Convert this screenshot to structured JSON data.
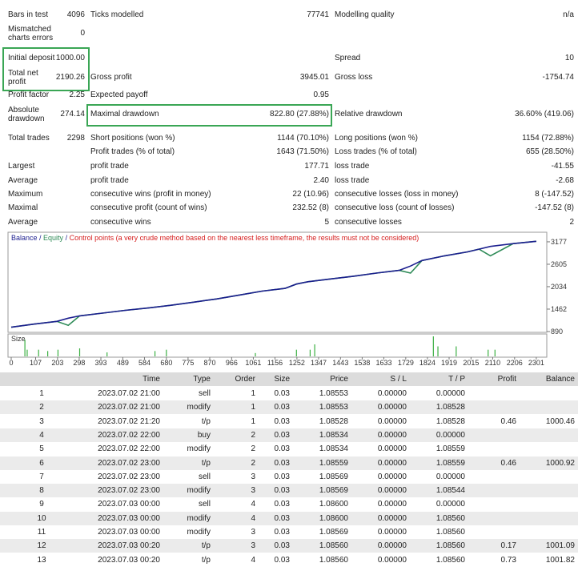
{
  "stats": [
    [
      {
        "label": "Bars in test",
        "value": "4096"
      },
      {
        "label": "Ticks modelled",
        "value": "77741"
      },
      {
        "label": "Modelling quality",
        "value": "n/a"
      }
    ],
    [
      {
        "label": "Mismatched charts errors",
        "value": "0"
      },
      null,
      null
    ],
    [
      {
        "label": "Initial deposit",
        "value": "1000.00"
      },
      null,
      {
        "label": "Spread",
        "value": "10"
      }
    ],
    [
      {
        "label": "Total net profit",
        "value": "2190.26"
      },
      {
        "label": "Gross profit",
        "value": "3945.01"
      },
      {
        "label": "Gross loss",
        "value": "-1754.74"
      }
    ],
    [
      {
        "label": "Profit factor",
        "value": "2.25"
      },
      {
        "label": "Expected payoff",
        "value": "0.95"
      },
      null
    ],
    [
      {
        "label": "Absolute drawdown",
        "value": "274.14"
      },
      {
        "label": "Maximal drawdown",
        "value": "822.80 (27.88%)"
      },
      {
        "label": "Relative drawdown",
        "value": "36.60% (419.06)"
      }
    ],
    [
      {
        "label": "Total trades",
        "value": "2298"
      },
      {
        "label": "Short positions (won %)",
        "value": "1144 (70.10%)"
      },
      {
        "label": "Long positions (won %)",
        "value": "1154 (72.88%)"
      }
    ],
    [
      null,
      {
        "label": "Profit trades (% of total)",
        "value": "1643 (71.50%)"
      },
      {
        "label": "Loss trades (% of total)",
        "value": "655 (28.50%)"
      }
    ],
    [
      {
        "label": "Largest"
      },
      {
        "label": "profit trade",
        "value": "177.71"
      },
      {
        "label": "loss trade",
        "value": "-41.55"
      }
    ],
    [
      {
        "label": "Average"
      },
      {
        "label": "profit trade",
        "value": "2.40"
      },
      {
        "label": "loss trade",
        "value": "-2.68"
      }
    ],
    [
      {
        "label": "Maximum"
      },
      {
        "label": "consecutive wins (profit in money)",
        "value": "22 (10.96)"
      },
      {
        "label": "consecutive losses (loss in money)",
        "value": "8 (-147.52)"
      }
    ],
    [
      {
        "label": "Maximal"
      },
      {
        "label": "consecutive profit (count of wins)",
        "value": "232.52 (8)"
      },
      {
        "label": "consecutive loss (count of losses)",
        "value": "-147.52 (8)"
      }
    ],
    [
      {
        "label": "Average"
      },
      {
        "label": "consecutive wins",
        "value": "5"
      },
      {
        "label": "consecutive losses",
        "value": "2"
      }
    ]
  ],
  "chart_data": {
    "type": "line",
    "legend_separator": " / ",
    "control_points_label": "Control points (a very crude method based on the nearest less timeframe, the results must not be considered)",
    "x": [
      0,
      100,
      200,
      250,
      300,
      400,
      500,
      600,
      700,
      800,
      900,
      1000,
      1100,
      1200,
      1250,
      1300,
      1400,
      1500,
      1600,
      1700,
      1750,
      1800,
      1900,
      2000,
      2050,
      2100,
      2200,
      2301
    ],
    "series": [
      {
        "name": "Balance",
        "color": "#1c1f8f",
        "values": [
          1000,
          1080,
          1150,
          1230,
          1290,
          1360,
          1430,
          1490,
          1560,
          1640,
          1720,
          1820,
          1920,
          1990,
          2100,
          2160,
          2230,
          2300,
          2380,
          2450,
          2560,
          2700,
          2820,
          2920,
          2990,
          3060,
          3130,
          3190
        ]
      },
      {
        "name": "Equity",
        "color": "#2e8b57",
        "values": [
          1000,
          1080,
          1150,
          1050,
          1290,
          1360,
          1430,
          1490,
          1560,
          1640,
          1720,
          1820,
          1920,
          1990,
          2100,
          2160,
          2230,
          2300,
          2380,
          2450,
          2380,
          2700,
          2820,
          2920,
          2990,
          2820,
          3130,
          3190
        ]
      }
    ],
    "xlim": [
      0,
      2347
    ],
    "xticks": [
      0,
      107,
      203,
      298,
      393,
      489,
      584,
      680,
      775,
      870,
      966,
      1061,
      1156,
      1252,
      1347,
      1443,
      1538,
      1633,
      1729,
      1824,
      1919,
      2015,
      2110,
      2206,
      2301
    ],
    "ylim": [
      890,
      3380
    ],
    "yticks": [
      3177,
      2605,
      2034,
      1462,
      890
    ],
    "size_panel": {
      "label": "Size",
      "color": "#3cb043",
      "ylim": [
        0,
        0.3
      ],
      "x": [
        60,
        70,
        120,
        160,
        205,
        300,
        420,
        630,
        680,
        1070,
        1250,
        1310,
        1330,
        1850,
        1870,
        1950,
        2090,
        2120
      ],
      "values": [
        0.25,
        0.1,
        0.1,
        0.08,
        0.1,
        0.12,
        0.06,
        0.08,
        0.1,
        0.05,
        0.1,
        0.1,
        0.18,
        0.3,
        0.15,
        0.15,
        0.1,
        0.1
      ]
    }
  },
  "table": {
    "header": [
      "Time",
      "Type",
      "Order",
      "Size",
      "Price",
      "S / L",
      "T / P",
      "Profit",
      "Balance"
    ],
    "rows": [
      [
        "1",
        "2023.07.02 21:00",
        "sell",
        "1",
        "0.03",
        "1.08553",
        "0.00000",
        "0.00000"
      ],
      [
        "2",
        "2023.07.02 21:00",
        "modify",
        "1",
        "0.03",
        "1.08553",
        "0.00000",
        "1.08528"
      ],
      [
        "3",
        "2023.07.02 21:20",
        "t/p",
        "1",
        "0.03",
        "1.08528",
        "0.00000",
        "1.08528",
        "0.46",
        "1000.46"
      ],
      [
        "4",
        "2023.07.02 22:00",
        "buy",
        "2",
        "0.03",
        "1.08534",
        "0.00000",
        "0.00000"
      ],
      [
        "5",
        "2023.07.02 22:00",
        "modify",
        "2",
        "0.03",
        "1.08534",
        "0.00000",
        "1.08559"
      ],
      [
        "6",
        "2023.07.02 23:00",
        "t/p",
        "2",
        "0.03",
        "1.08559",
        "0.00000",
        "1.08559",
        "0.46",
        "1000.92"
      ],
      [
        "7",
        "2023.07.02 23:00",
        "sell",
        "3",
        "0.03",
        "1.08569",
        "0.00000",
        "0.00000"
      ],
      [
        "8",
        "2023.07.02 23:00",
        "modify",
        "3",
        "0.03",
        "1.08569",
        "0.00000",
        "1.08544"
      ],
      [
        "9",
        "2023.07.03 00:00",
        "sell",
        "4",
        "0.03",
        "1.08600",
        "0.00000",
        "0.00000"
      ],
      [
        "10",
        "2023.07.03 00:00",
        "modify",
        "4",
        "0.03",
        "1.08600",
        "0.00000",
        "1.08560"
      ],
      [
        "11",
        "2023.07.03 00:00",
        "modify",
        "3",
        "0.03",
        "1.08569",
        "0.00000",
        "1.08560"
      ],
      [
        "12",
        "2023.07.03 00:20",
        "t/p",
        "3",
        "0.03",
        "1.08560",
        "0.00000",
        "1.08560",
        "0.17",
        "1001.09"
      ],
      [
        "13",
        "2023.07.03 00:20",
        "t/p",
        "4",
        "0.03",
        "1.08560",
        "0.00000",
        "1.08560",
        "0.73",
        "1001.82"
      ]
    ]
  }
}
